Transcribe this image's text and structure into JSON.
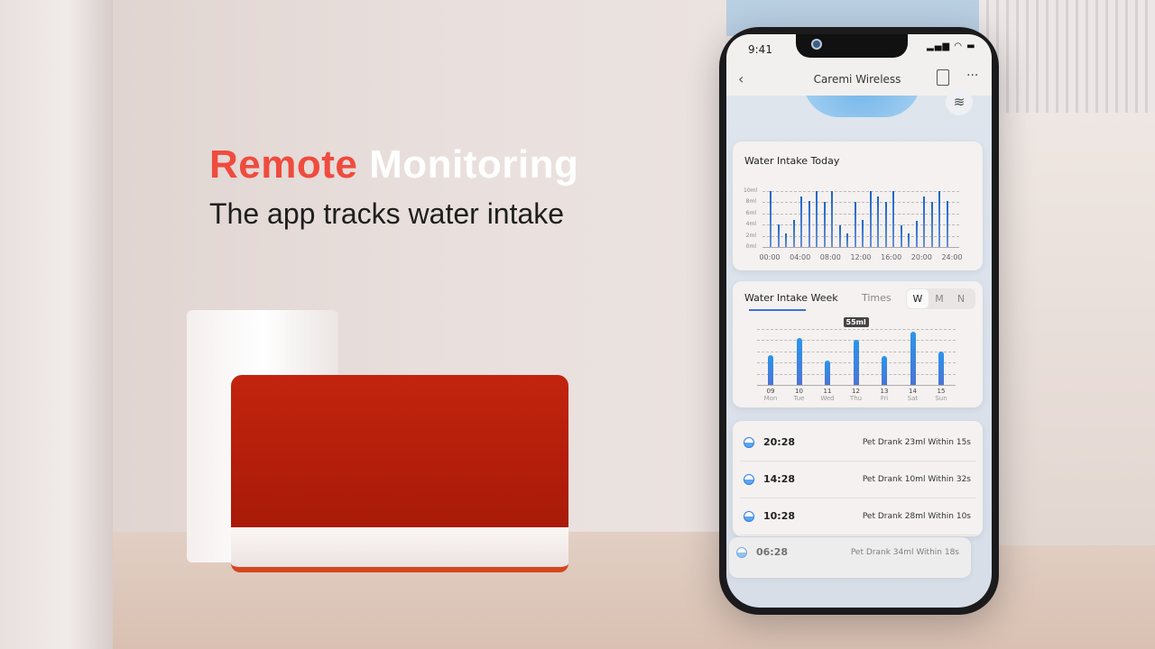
{
  "hero": {
    "headline_accent": "Remote",
    "headline_rest": " Monitoring",
    "subheadline": "The app tracks water intake"
  },
  "status_bar": {
    "time": "9:41"
  },
  "nav": {
    "title": "Caremi Wireless",
    "back_icon": "chevron-left-icon",
    "report_icon": "document-clock-icon",
    "more_icon": "more-icon",
    "water_icon": "water-level-icon"
  },
  "today_card": {
    "title": "Water Intake Today"
  },
  "week_card": {
    "tab_active": "Water Intake Week",
    "tab_inactive": "Times",
    "segments": [
      "W",
      "M",
      "N"
    ],
    "selected_segment": "W",
    "tooltip": "55ml"
  },
  "records": [
    {
      "time": "20:28",
      "text": "Pet Drank 23ml Within 15s"
    },
    {
      "time": "14:28",
      "text": "Pet Drank 10ml Within 32s"
    },
    {
      "time": "10:28",
      "text": "Pet Drank 28ml Within 10s"
    },
    {
      "time": "06:28",
      "text": "Pet Drank 34ml Within 18s"
    }
  ],
  "colors": {
    "accent": "#ef4b3e",
    "bar": "#2a7fe0"
  },
  "chart_data": [
    {
      "type": "bar",
      "title": "Water Intake Today",
      "ylim": [
        0,
        10
      ],
      "yticks": [
        "0ml",
        "2ml",
        "4ml",
        "6ml",
        "8ml",
        "10ml"
      ],
      "xticks": [
        "00:00",
        "04:00",
        "08:00",
        "12:00",
        "16:00",
        "20:00",
        "24:00"
      ],
      "values": [
        10,
        4,
        2.4,
        4.8,
        9,
        8.2,
        10,
        8,
        10,
        3.8,
        2.4,
        8,
        4.8,
        10,
        9,
        8,
        10,
        3.8,
        2.4,
        4.6,
        9,
        8,
        10,
        8.2
      ]
    },
    {
      "type": "bar",
      "title": "Water Intake Week",
      "categories": [
        {
          "day": "09",
          "weekday": "Mon"
        },
        {
          "day": "10",
          "weekday": "Tue"
        },
        {
          "day": "11",
          "weekday": "Wed"
        },
        {
          "day": "12",
          "weekday": "Thu"
        },
        {
          "day": "13",
          "weekday": "Fri"
        },
        {
          "day": "14",
          "weekday": "Sat"
        },
        {
          "day": "15",
          "weekday": "Sun"
        }
      ],
      "values": [
        36,
        57,
        30,
        55,
        35,
        64,
        40
      ],
      "ylim": [
        0,
        70
      ],
      "highlight_index": 3
    }
  ]
}
